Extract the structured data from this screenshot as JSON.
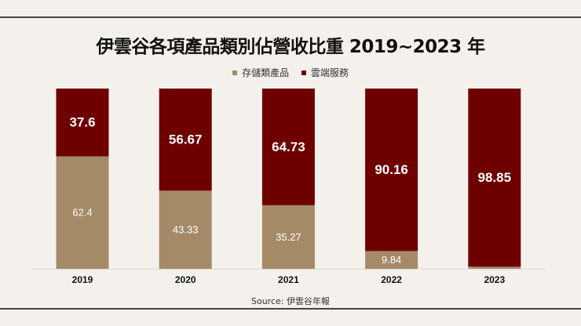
{
  "chart_data": {
    "type": "bar",
    "stacked": true,
    "title": "伊雲谷各項產品類別佔營收比重 2019~2023 年",
    "categories": [
      "2019",
      "2020",
      "2021",
      "2022",
      "2023"
    ],
    "series": [
      {
        "name": "存儲類產品",
        "color": "#a58a68",
        "values": [
          62.4,
          43.33,
          35.27,
          9.84,
          1.15
        ]
      },
      {
        "name": "雲端服務",
        "color": "#6e0000",
        "values": [
          37.6,
          56.67,
          64.73,
          90.16,
          98.85
        ]
      }
    ],
    "ylim": [
      0,
      100
    ],
    "grid": false,
    "legend": "top",
    "source": "Source:  伊雲谷年報"
  }
}
